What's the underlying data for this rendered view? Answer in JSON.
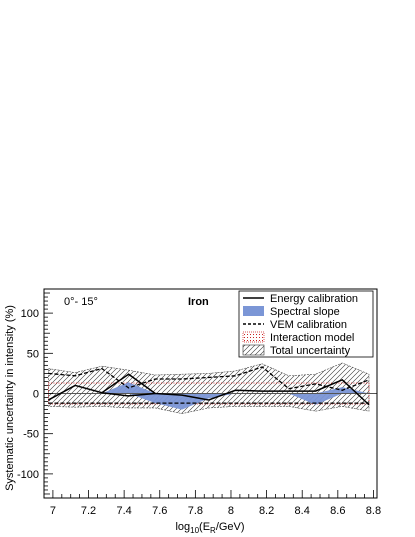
{
  "chart_data": {
    "type": "line",
    "xlabel_parts": {
      "pre": "log",
      "sub1": "10",
      "mid": "(E",
      "sub2": "R",
      "post": "/GeV)"
    },
    "ylabel": "Systematic uncertainty in intensity (%)",
    "xlim": [
      6.95,
      8.82
    ],
    "ylim": [
      -130,
      130
    ],
    "xticks": [
      7,
      7.2,
      7.4,
      7.6,
      7.8,
      8,
      8.2,
      8.4,
      8.6,
      8.8
    ],
    "xtick_labels": [
      "7",
      "7.2",
      "7.4",
      "7.6",
      "7.8",
      "8",
      "8.2",
      "8.4",
      "8.6",
      "8.8"
    ],
    "yticks": [
      -100,
      -50,
      0,
      50,
      100
    ],
    "ytick_labels": [
      "-100",
      "-50",
      "0",
      "50",
      "100"
    ],
    "annotations": {
      "angle": "0°- 15°",
      "composition": "Iron"
    },
    "legend_position": "top-right",
    "legend": [
      {
        "key": "energy",
        "label": "Energy calibration"
      },
      {
        "key": "slope",
        "label": "Spectral slope"
      },
      {
        "key": "vem",
        "label": "VEM calibration"
      },
      {
        "key": "interaction",
        "label": "Interaction model"
      },
      {
        "key": "total",
        "label": "Total uncertainty"
      }
    ],
    "x": [
      6.975,
      7.125,
      7.275,
      7.425,
      7.575,
      7.725,
      7.875,
      8.025,
      8.175,
      8.325,
      8.475,
      8.625,
      8.775
    ],
    "series": [
      {
        "key": "energy",
        "name": "Energy calibration",
        "values": [
          -8,
          10,
          1,
          24,
          0,
          -2,
          -8,
          4,
          3,
          3,
          3,
          17,
          -14
        ],
        "values_lower": [
          null,
          null,
          null,
          -3,
          null,
          null,
          null,
          null,
          null,
          null,
          null,
          null,
          null
        ]
      },
      {
        "key": "slope",
        "name": "Spectral slope",
        "upper": [
          0,
          0,
          0,
          14,
          0,
          0,
          0,
          0,
          0,
          0,
          0,
          8,
          0
        ],
        "lower": [
          0,
          0,
          0,
          0,
          -12,
          -20,
          -6,
          0,
          0,
          0,
          -14,
          0,
          0
        ]
      },
      {
        "key": "vem",
        "name": "VEM calibration",
        "upper": [
          25,
          22,
          31,
          7,
          18,
          18,
          20,
          22,
          33,
          6,
          12,
          4,
          17
        ],
        "lower": [
          -12,
          -12,
          -12,
          -12,
          -12,
          -12,
          -12,
          -12,
          -12,
          -12,
          -12,
          -12,
          -12
        ]
      },
      {
        "key": "interaction",
        "name": "Interaction model",
        "upper": [
          13,
          13,
          13,
          13,
          13,
          13,
          13,
          13,
          13,
          13,
          13,
          13,
          13
        ],
        "lower": [
          -13,
          -13,
          -13,
          -13,
          -13,
          -13,
          -13,
          -13,
          -13,
          -13,
          -13,
          -13,
          -13
        ]
      },
      {
        "key": "total",
        "name": "Total uncertainty",
        "upper": [
          31,
          26,
          34,
          29,
          23,
          24,
          25,
          28,
          37,
          22,
          24,
          38,
          24
        ],
        "lower": [
          -16,
          -17,
          -16,
          -18,
          -18,
          -25,
          -18,
          -16,
          -16,
          -16,
          -22,
          -16,
          -22
        ]
      }
    ],
    "colors": {
      "energy": "#000000",
      "slope": "#7b96d6",
      "vem": "#000000",
      "interaction": "#cc2222",
      "total": "#444444",
      "zero_line": "#555555"
    }
  }
}
